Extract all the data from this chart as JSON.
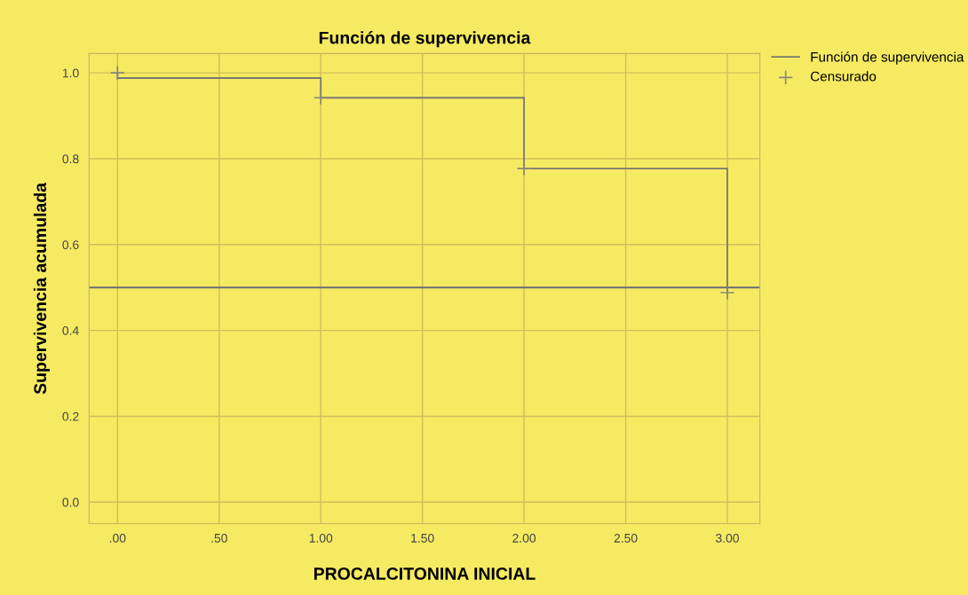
{
  "chart_data": {
    "type": "step",
    "title": "Función de supervivencia",
    "xlabel": "PROCALCITONINA INICIAL",
    "ylabel": "Supervivencia acumulada",
    "series": [
      {
        "name": "Función de supervivencia",
        "color": "#7a7870",
        "marker": "none",
        "x": [
          0,
          0,
          1,
          2,
          3
        ],
        "values": [
          1.0,
          0.988,
          0.942,
          0.777,
          0.49
        ]
      },
      {
        "name": "Censurado",
        "type": "scatter",
        "color": "#8a8878",
        "marker": "cross",
        "x": [
          0,
          1,
          2,
          3
        ],
        "values": [
          1.0,
          0.942,
          0.777,
          0.488
        ]
      }
    ],
    "ref_lines": [
      {
        "axis": "y",
        "value": 0.5,
        "label": null,
        "color": "#6a6a78"
      }
    ],
    "xlim": [
      -0.14,
      3.16
    ],
    "ylim": [
      -0.05,
      1.045
    ],
    "xticks": [
      {
        "value": 0,
        "label": ".00"
      },
      {
        "value": 0.5,
        "label": ".50"
      },
      {
        "value": 1,
        "label": "1.00"
      },
      {
        "value": 1.5,
        "label": "1.50"
      },
      {
        "value": 2,
        "label": "2.00"
      },
      {
        "value": 2.5,
        "label": "2.50"
      },
      {
        "value": 3,
        "label": "3.00"
      }
    ],
    "yticks": [
      {
        "value": 0,
        "label": "0.0"
      },
      {
        "value": 0.2,
        "label": "0.2"
      },
      {
        "value": 0.4,
        "label": "0.4"
      },
      {
        "value": 0.6,
        "label": "0.6"
      },
      {
        "value": 0.8,
        "label": "0.8"
      },
      {
        "value": 1.0,
        "label": "1.0"
      }
    ],
    "grid": true,
    "legend": "top right"
  }
}
